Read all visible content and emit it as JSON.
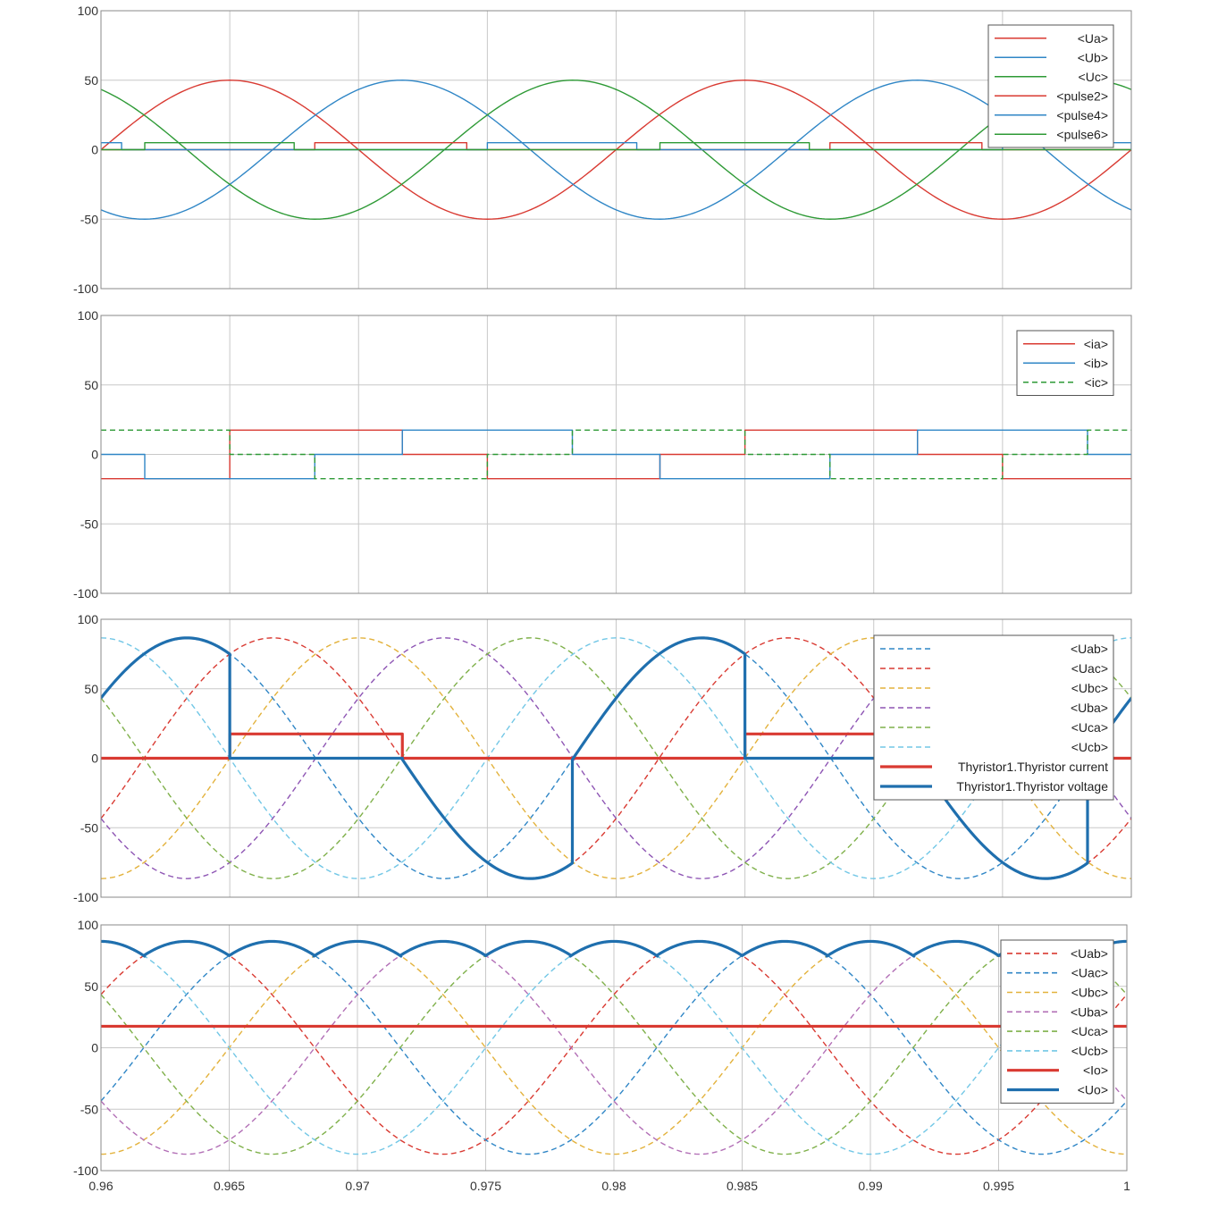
{
  "chart_data": [
    {
      "type": "line",
      "xlim": [
        0.96,
        1
      ],
      "ylim": [
        -100,
        100
      ],
      "grid": true,
      "x_ticks": [
        "0.96",
        "0.965",
        "0.97",
        "0.975",
        "0.98",
        "0.985",
        "0.99",
        "0.995",
        "1"
      ],
      "y_ticks": [
        "100",
        "50",
        "0",
        "-50",
        "-100"
      ],
      "legend_position": "top-right",
      "series": [
        {
          "name": "<Ua>",
          "color": "#d93a32",
          "style": "solid",
          "kind": "sine",
          "amplitude": 50,
          "frequency_hz": 50,
          "phase_deg": 0
        },
        {
          "name": "<Ub>",
          "color": "#2f86c6",
          "style": "solid",
          "kind": "sine",
          "amplitude": 50,
          "frequency_hz": 50,
          "phase_deg": -120
        },
        {
          "name": "<Uc>",
          "color": "#2e9a36",
          "style": "solid",
          "kind": "sine",
          "amplitude": 50,
          "frequency_hz": 50,
          "phase_deg": 120
        },
        {
          "name": "<pulse2>",
          "color": "#d93a32",
          "style": "solid",
          "kind": "pulse",
          "high": 5,
          "intervals": [
            [
              0.9683,
              0.9742
            ],
            [
              0.9883,
              0.9942
            ]
          ]
        },
        {
          "name": "<pulse4>",
          "color": "#2f86c6",
          "style": "solid",
          "kind": "pulse",
          "high": 5,
          "intervals": [
            [
              0.96,
              0.9608
            ],
            [
              0.975,
              0.9808
            ],
            [
              0.995,
              1.0
            ]
          ]
        },
        {
          "name": "<pulse6>",
          "color": "#2e9a36",
          "style": "solid",
          "kind": "pulse",
          "high": 5,
          "intervals": [
            [
              0.9617,
              0.9675
            ],
            [
              0.9817,
              0.9875
            ]
          ]
        }
      ]
    },
    {
      "type": "line",
      "xlim": [
        0.96,
        1
      ],
      "ylim": [
        -100,
        100
      ],
      "grid": true,
      "x_ticks": [
        "0.96",
        "0.965",
        "0.97",
        "0.975",
        "0.98",
        "0.985",
        "0.99",
        "0.995",
        "1"
      ],
      "y_ticks": [
        "100",
        "50",
        "0",
        "-50",
        "-100"
      ],
      "legend_position": "top-right",
      "series": [
        {
          "name": "<ia>",
          "color": "#d93a32",
          "style": "solid",
          "kind": "step",
          "x": [
            0.96,
            0.965,
            0.965,
            0.9717,
            0.9717,
            0.975,
            0.975,
            0.9817,
            0.9817,
            0.985,
            0.985,
            0.9917,
            0.9917,
            0.995,
            0.995,
            1.0
          ],
          "y": [
            -17.5,
            -17.5,
            17.5,
            17.5,
            0,
            0,
            -17.5,
            -17.5,
            0,
            0,
            17.5,
            17.5,
            0,
            0,
            -17.5,
            -17.5
          ]
        },
        {
          "name": "<ib>",
          "color": "#2f86c6",
          "style": "solid",
          "kind": "step",
          "x": [
            0.96,
            0.9617,
            0.9617,
            0.9683,
            0.9683,
            0.9717,
            0.9717,
            0.9783,
            0.9783,
            0.9817,
            0.9817,
            0.9883,
            0.9883,
            0.9917,
            0.9917,
            0.9983,
            0.9983,
            1.0
          ],
          "y": [
            0,
            0,
            -17.5,
            -17.5,
            0,
            0,
            17.5,
            17.5,
            0,
            0,
            -17.5,
            -17.5,
            0,
            0,
            17.5,
            17.5,
            0,
            0
          ]
        },
        {
          "name": "<ic>",
          "color": "#2e9a36",
          "style": "dashed",
          "kind": "step",
          "x": [
            0.96,
            0.965,
            0.965,
            0.9683,
            0.9683,
            0.975,
            0.975,
            0.9783,
            0.9783,
            0.985,
            0.985,
            0.9883,
            0.9883,
            0.995,
            0.995,
            0.9983,
            0.9983,
            1.0
          ],
          "y": [
            17.5,
            17.5,
            0,
            0,
            -17.5,
            -17.5,
            0,
            0,
            17.5,
            17.5,
            0,
            0,
            -17.5,
            -17.5,
            0,
            0,
            17.5,
            17.5
          ]
        }
      ]
    },
    {
      "type": "line",
      "xlim": [
        0.96,
        1
      ],
      "ylim": [
        -100,
        100
      ],
      "grid": true,
      "x_ticks": [
        "0.96",
        "0.965",
        "0.97",
        "0.975",
        "0.98",
        "0.985",
        "0.99",
        "0.995",
        "1"
      ],
      "y_ticks": [
        "100",
        "50",
        "0",
        "-50",
        "-100"
      ],
      "legend_position": "top-right",
      "series": [
        {
          "name": "<Uab>",
          "color": "#2f86c6",
          "style": "dashed",
          "kind": "sine",
          "amplitude": 86.6,
          "frequency_hz": 50,
          "phase_deg": 30
        },
        {
          "name": "<Uac>",
          "color": "#d93a32",
          "style": "dashed",
          "kind": "sine",
          "amplitude": 86.6,
          "frequency_hz": 50,
          "phase_deg": -30
        },
        {
          "name": "<Ubc>",
          "color": "#e3b23c",
          "style": "dashed",
          "kind": "sine",
          "amplitude": 86.6,
          "frequency_hz": 50,
          "phase_deg": -90
        },
        {
          "name": "<Uba>",
          "color": "#8e55b4",
          "style": "dashed",
          "kind": "sine",
          "amplitude": 86.6,
          "frequency_hz": 50,
          "phase_deg": -150
        },
        {
          "name": "<Uca>",
          "color": "#7fb04a",
          "style": "dashed",
          "kind": "sine",
          "amplitude": 86.6,
          "frequency_hz": 50,
          "phase_deg": 150
        },
        {
          "name": "<Ucb>",
          "color": "#72c7e6",
          "style": "dashed",
          "kind": "sine",
          "amplitude": 86.6,
          "frequency_hz": 50,
          "phase_deg": 90
        },
        {
          "name": "Thyristor1.Thyristor current",
          "color": "#d93a32",
          "style": "thick",
          "kind": "step",
          "x": [
            0.96,
            0.965,
            0.965,
            0.9717,
            0.9717,
            0.985,
            0.985,
            0.9917,
            0.9917,
            1.0
          ],
          "y": [
            0,
            0,
            17.5,
            17.5,
            0,
            0,
            17.5,
            17.5,
            0,
            0
          ]
        },
        {
          "name": "Thyristor1.Thyristor voltage",
          "color": "#1f6fae",
          "style": "thick",
          "kind": "thyristor_voltage",
          "segments": [
            {
              "from": 0.96,
              "to": 0.965,
              "line": "Uab"
            },
            {
              "from": 0.965,
              "to": 0.9717,
              "value": 0
            },
            {
              "from": 0.9717,
              "to": 0.9783,
              "line": "Uac"
            },
            {
              "from": 0.9783,
              "to": 0.985,
              "line": "Uab"
            },
            {
              "from": 0.985,
              "to": 0.9917,
              "value": 0
            },
            {
              "from": 0.9917,
              "to": 0.9983,
              "line": "Uac"
            },
            {
              "from": 0.9983,
              "to": 1.0,
              "line": "Uab"
            }
          ]
        }
      ]
    },
    {
      "type": "line",
      "xlim": [
        0.96,
        1
      ],
      "ylim": [
        -100,
        100
      ],
      "grid": true,
      "x_ticks": [
        "0.96",
        "0.965",
        "0.97",
        "0.975",
        "0.98",
        "0.985",
        "0.99",
        "0.995",
        "1"
      ],
      "y_ticks": [
        "100",
        "50",
        "0",
        "-50",
        "-100"
      ],
      "legend_position": "top-right",
      "series": [
        {
          "name": "<Uab>",
          "color": "#d93a32",
          "style": "dashed",
          "kind": "sine",
          "amplitude": 86.6,
          "frequency_hz": 50,
          "phase_deg": 30
        },
        {
          "name": "<Uac>",
          "color": "#2f86c6",
          "style": "dashed",
          "kind": "sine",
          "amplitude": 86.6,
          "frequency_hz": 50,
          "phase_deg": -30
        },
        {
          "name": "<Ubc>",
          "color": "#e3b23c",
          "style": "dashed",
          "kind": "sine",
          "amplitude": 86.6,
          "frequency_hz": 50,
          "phase_deg": -90
        },
        {
          "name": "<Uba>",
          "color": "#b26fb6",
          "style": "dashed",
          "kind": "sine",
          "amplitude": 86.6,
          "frequency_hz": 50,
          "phase_deg": -150
        },
        {
          "name": "<Uca>",
          "color": "#7fb04a",
          "style": "dashed",
          "kind": "sine",
          "amplitude": 86.6,
          "frequency_hz": 50,
          "phase_deg": 150
        },
        {
          "name": "<Ucb>",
          "color": "#72c7e6",
          "style": "dashed",
          "kind": "sine",
          "amplitude": 86.6,
          "frequency_hz": 50,
          "phase_deg": 90
        },
        {
          "name": "<Io>",
          "color": "#d93a32",
          "style": "thick",
          "kind": "constant",
          "value": 17.5
        },
        {
          "name": "<Uo>",
          "color": "#1f6fae",
          "style": "thick",
          "kind": "rectified",
          "segments": [
            {
              "from": 0.96,
              "to": 0.9617,
              "line": "Ucb"
            },
            {
              "from": 0.9617,
              "to": 0.965,
              "line": "Uab"
            },
            {
              "from": 0.965,
              "to": 0.9683,
              "line": "Uac"
            },
            {
              "from": 0.9683,
              "to": 0.9717,
              "line": "Ubc"
            },
            {
              "from": 0.9717,
              "to": 0.975,
              "line": "Uba"
            },
            {
              "from": 0.975,
              "to": 0.9783,
              "line": "Uca"
            },
            {
              "from": 0.9783,
              "to": 0.9817,
              "line": "Ucb"
            },
            {
              "from": 0.9817,
              "to": 0.985,
              "line": "Uab"
            },
            {
              "from": 0.985,
              "to": 0.9883,
              "line": "Uac"
            },
            {
              "from": 0.9883,
              "to": 0.9917,
              "line": "Ubc"
            },
            {
              "from": 0.9917,
              "to": 0.995,
              "line": "Uba"
            },
            {
              "from": 0.995,
              "to": 0.9983,
              "line": "Uca"
            },
            {
              "from": 0.9983,
              "to": 1.0,
              "line": "Ucb"
            }
          ]
        }
      ]
    }
  ]
}
